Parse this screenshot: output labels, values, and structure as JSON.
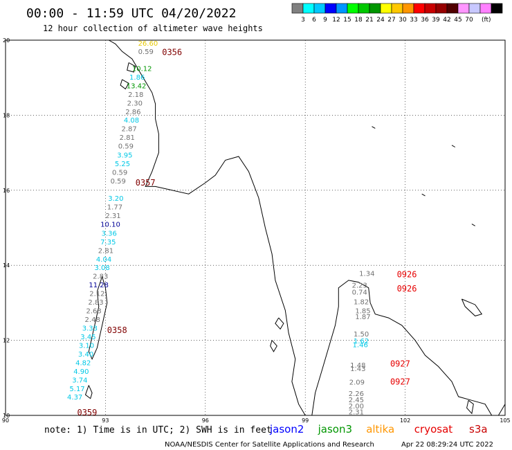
{
  "header": {
    "title": "00:00 - 11:59 UTC 04/20/2022",
    "subtitle": "12 hour collection of altimeter wave heights"
  },
  "colorbar": {
    "swatches": [
      "#808080",
      "#00ffff",
      "#00c8ff",
      "#0000ff",
      "#0096ff",
      "#00ff00",
      "#00c800",
      "#009600",
      "#ffff00",
      "#ffc800",
      "#ff9600",
      "#ff0000",
      "#c80000",
      "#960000",
      "#500000",
      "#ff96ff",
      "#c8c8ff",
      "#ff80ff",
      "#000000"
    ],
    "labels": [
      "3",
      "6",
      "9",
      "12",
      "15",
      "18",
      "21",
      "24",
      "27",
      "30",
      "33",
      "36",
      "39",
      "42",
      "45",
      "70",
      "(ft)"
    ]
  },
  "axes": {
    "lat_labels": [
      "20",
      "18",
      "16",
      "14",
      "12",
      "10"
    ],
    "lon_labels": [
      "90",
      "93",
      "96",
      "99",
      "102",
      "105"
    ]
  },
  "colors": {
    "gray": "#707070",
    "cyan": "#00c8e6",
    "navy": "#000096",
    "green": "#009600",
    "gold": "#e6c800",
    "dkred": "#800000",
    "red": "#e60000"
  },
  "wave_labels": [
    {
      "text": "26.60",
      "lon": 93.98,
      "lat": 19.85,
      "color": "gold"
    },
    {
      "text": "0.59",
      "lon": 93.98,
      "lat": 19.63,
      "color": "gray"
    },
    {
      "text": "10.12",
      "lon": 93.8,
      "lat": 19.18,
      "color": "green"
    },
    {
      "text": "1.86",
      "lon": 93.72,
      "lat": 18.95,
      "color": "cyan"
    },
    {
      "text": "13.42",
      "lon": 93.63,
      "lat": 18.72,
      "color": "green"
    },
    {
      "text": "2.18",
      "lon": 93.68,
      "lat": 18.49,
      "color": "gray"
    },
    {
      "text": "2.30",
      "lon": 93.65,
      "lat": 18.26,
      "color": "gray"
    },
    {
      "text": "2.86",
      "lon": 93.6,
      "lat": 18.03,
      "color": "gray"
    },
    {
      "text": "4.08",
      "lon": 93.55,
      "lat": 17.8,
      "color": "cyan"
    },
    {
      "text": "2.87",
      "lon": 93.48,
      "lat": 17.57,
      "color": "gray"
    },
    {
      "text": "2.81",
      "lon": 93.42,
      "lat": 17.34,
      "color": "gray"
    },
    {
      "text": "0.59",
      "lon": 93.38,
      "lat": 17.11,
      "color": "gray"
    },
    {
      "text": "3.95",
      "lon": 93.35,
      "lat": 16.87,
      "color": "cyan"
    },
    {
      "text": "5.25",
      "lon": 93.28,
      "lat": 16.64,
      "color": "cyan"
    },
    {
      "text": "0.59",
      "lon": 93.2,
      "lat": 16.41,
      "color": "gray"
    },
    {
      "text": "0.59",
      "lon": 93.15,
      "lat": 16.18,
      "color": "gray"
    },
    {
      "text": "3.20",
      "lon": 93.08,
      "lat": 15.72,
      "color": "cyan"
    },
    {
      "text": "1.77",
      "lon": 93.05,
      "lat": 15.49,
      "color": "gray"
    },
    {
      "text": "2.31",
      "lon": 93.0,
      "lat": 15.26,
      "color": "gray"
    },
    {
      "text": "10.10",
      "lon": 92.85,
      "lat": 15.03,
      "color": "navy"
    },
    {
      "text": "3.36",
      "lon": 92.88,
      "lat": 14.79,
      "color": "cyan"
    },
    {
      "text": "7.35",
      "lon": 92.85,
      "lat": 14.56,
      "color": "cyan"
    },
    {
      "text": "2.81",
      "lon": 92.78,
      "lat": 14.33,
      "color": "gray"
    },
    {
      "text": "4.04",
      "lon": 92.72,
      "lat": 14.1,
      "color": "cyan"
    },
    {
      "text": "3.08",
      "lon": 92.67,
      "lat": 13.87,
      "color": "cyan"
    },
    {
      "text": "2.83",
      "lon": 92.62,
      "lat": 13.64,
      "color": "gray"
    },
    {
      "text": "11.28",
      "lon": 92.5,
      "lat": 13.41,
      "color": "navy"
    },
    {
      "text": "2.12",
      "lon": 92.52,
      "lat": 13.18,
      "color": "gray"
    },
    {
      "text": "2.83",
      "lon": 92.48,
      "lat": 12.95,
      "color": "gray"
    },
    {
      "text": "2.63",
      "lon": 92.42,
      "lat": 12.72,
      "color": "gray"
    },
    {
      "text": "2.48",
      "lon": 92.38,
      "lat": 12.49,
      "color": "gray"
    },
    {
      "text": "3.33",
      "lon": 92.3,
      "lat": 12.26,
      "color": "cyan"
    },
    {
      "text": "3.45",
      "lon": 92.25,
      "lat": 12.03,
      "color": "cyan"
    },
    {
      "text": "3.10",
      "lon": 92.2,
      "lat": 11.8,
      "color": "cyan"
    },
    {
      "text": "3.40",
      "lon": 92.18,
      "lat": 11.57,
      "color": "cyan"
    },
    {
      "text": "4.82",
      "lon": 92.1,
      "lat": 11.34,
      "color": "cyan"
    },
    {
      "text": "4.90",
      "lon": 92.04,
      "lat": 11.11,
      "color": "cyan"
    },
    {
      "text": "3.74",
      "lon": 92.0,
      "lat": 10.88,
      "color": "cyan"
    },
    {
      "text": "5.17",
      "lon": 91.92,
      "lat": 10.65,
      "color": "cyan"
    },
    {
      "text": "4.37",
      "lon": 91.85,
      "lat": 10.42,
      "color": "cyan"
    },
    {
      "text": "1.34",
      "lon": 100.62,
      "lat": 13.72,
      "color": "gray"
    },
    {
      "text": "2.23",
      "lon": 100.4,
      "lat": 13.4,
      "color": "gray"
    },
    {
      "text": "0.74",
      "lon": 100.4,
      "lat": 13.22,
      "color": "gray"
    },
    {
      "text": "1.82",
      "lon": 100.45,
      "lat": 12.96,
      "color": "gray"
    },
    {
      "text": "1.85",
      "lon": 100.5,
      "lat": 12.72,
      "color": "gray"
    },
    {
      "text": "1.87",
      "lon": 100.5,
      "lat": 12.56,
      "color": "gray"
    },
    {
      "text": "1.50",
      "lon": 100.45,
      "lat": 12.1,
      "color": "gray"
    },
    {
      "text": "1.62",
      "lon": 100.45,
      "lat": 11.92,
      "color": "cyan"
    },
    {
      "text": "1.46",
      "lon": 100.42,
      "lat": 11.82,
      "color": "cyan"
    },
    {
      "text": "1.48",
      "lon": 100.35,
      "lat": 11.27,
      "color": "gray"
    },
    {
      "text": "1.43",
      "lon": 100.35,
      "lat": 11.18,
      "color": "gray"
    },
    {
      "text": "2.09",
      "lon": 100.32,
      "lat": 10.82,
      "color": "gray"
    },
    {
      "text": "2.26",
      "lon": 100.3,
      "lat": 10.52,
      "color": "gray"
    },
    {
      "text": "2.45",
      "lon": 100.3,
      "lat": 10.35,
      "color": "gray"
    },
    {
      "text": "2.00",
      "lon": 100.3,
      "lat": 10.18,
      "color": "gray"
    },
    {
      "text": "2.31",
      "lon": 100.3,
      "lat": 10.03,
      "color": "gray"
    }
  ],
  "time_labels": [
    {
      "text": "0356",
      "lon": 94.7,
      "lat": 19.6,
      "color": "dkred"
    },
    {
      "text": "0357",
      "lon": 93.9,
      "lat": 16.13,
      "color": "dkred"
    },
    {
      "text": "0358",
      "lon": 93.05,
      "lat": 12.2,
      "color": "dkred"
    },
    {
      "text": "0359",
      "lon": 92.15,
      "lat": 10.0,
      "color": "dkred"
    },
    {
      "text": "0926",
      "lon": 101.75,
      "lat": 13.68,
      "color": "red"
    },
    {
      "text": "0926",
      "lon": 101.75,
      "lat": 13.3,
      "color": "red"
    },
    {
      "text": "0927",
      "lon": 101.55,
      "lat": 11.3,
      "color": "red"
    },
    {
      "text": "0927",
      "lon": 101.55,
      "lat": 10.82,
      "color": "red"
    }
  ],
  "footer": {
    "note": "note: 1) Time is in UTC; 2) SWH is in feet",
    "legend": [
      {
        "text": "jason2",
        "color": "#0000ff"
      },
      {
        "text": "jason3",
        "color": "#009600"
      },
      {
        "text": "altika",
        "color": "#ff9600"
      },
      {
        "text": "cryosat",
        "color": "#e60000"
      },
      {
        "text": "s3a",
        "color": "#c80000"
      }
    ],
    "credit": "NOAA/NESDIS Center for Satellite Applications and Research",
    "timestamp": "Apr 22 08:29:24 UTC 2022"
  }
}
